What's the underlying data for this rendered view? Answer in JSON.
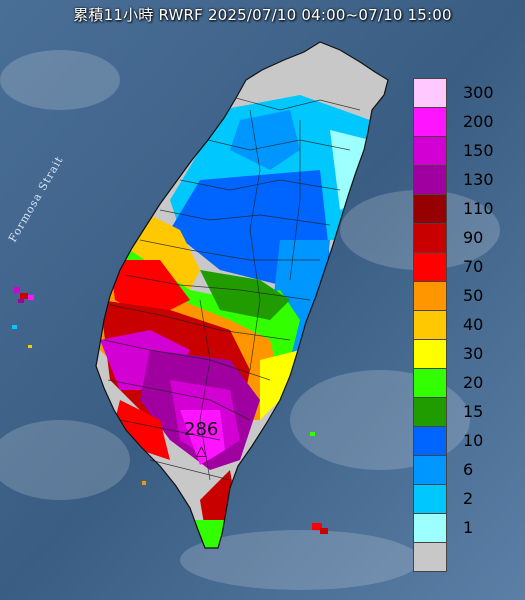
{
  "title": "累積11小時 RWRF 2025/07/10 04:00~07/10 15:00",
  "strait_label": "Formosa Strait",
  "max_value_label": "286",
  "max_marker_icon": "triangle-icon",
  "legend": [
    {
      "label": "300",
      "color": "#ffc8ff"
    },
    {
      "label": "200",
      "color": "#ff14ff"
    },
    {
      "label": "150",
      "color": "#d200d2"
    },
    {
      "label": "130",
      "color": "#a000a0"
    },
    {
      "label": "110",
      "color": "#960000"
    },
    {
      "label": "90",
      "color": "#c80000"
    },
    {
      "label": "70",
      "color": "#ff0000"
    },
    {
      "label": "50",
      "color": "#ff9600"
    },
    {
      "label": "40",
      "color": "#ffc800"
    },
    {
      "label": "30",
      "color": "#ffff00"
    },
    {
      "label": "20",
      "color": "#32ff00"
    },
    {
      "label": "15",
      "color": "#219c00"
    },
    {
      "label": "10",
      "color": "#0064ff"
    },
    {
      "label": "6",
      "color": "#0096ff"
    },
    {
      "label": "2",
      "color": "#00c8ff"
    },
    {
      "label": "1",
      "color": "#9effff"
    },
    {
      "label": "",
      "color": "#c8c8c8"
    }
  ],
  "colors": {
    "sea": "#3b5f86",
    "no_rain": "#c8c8c8"
  }
}
